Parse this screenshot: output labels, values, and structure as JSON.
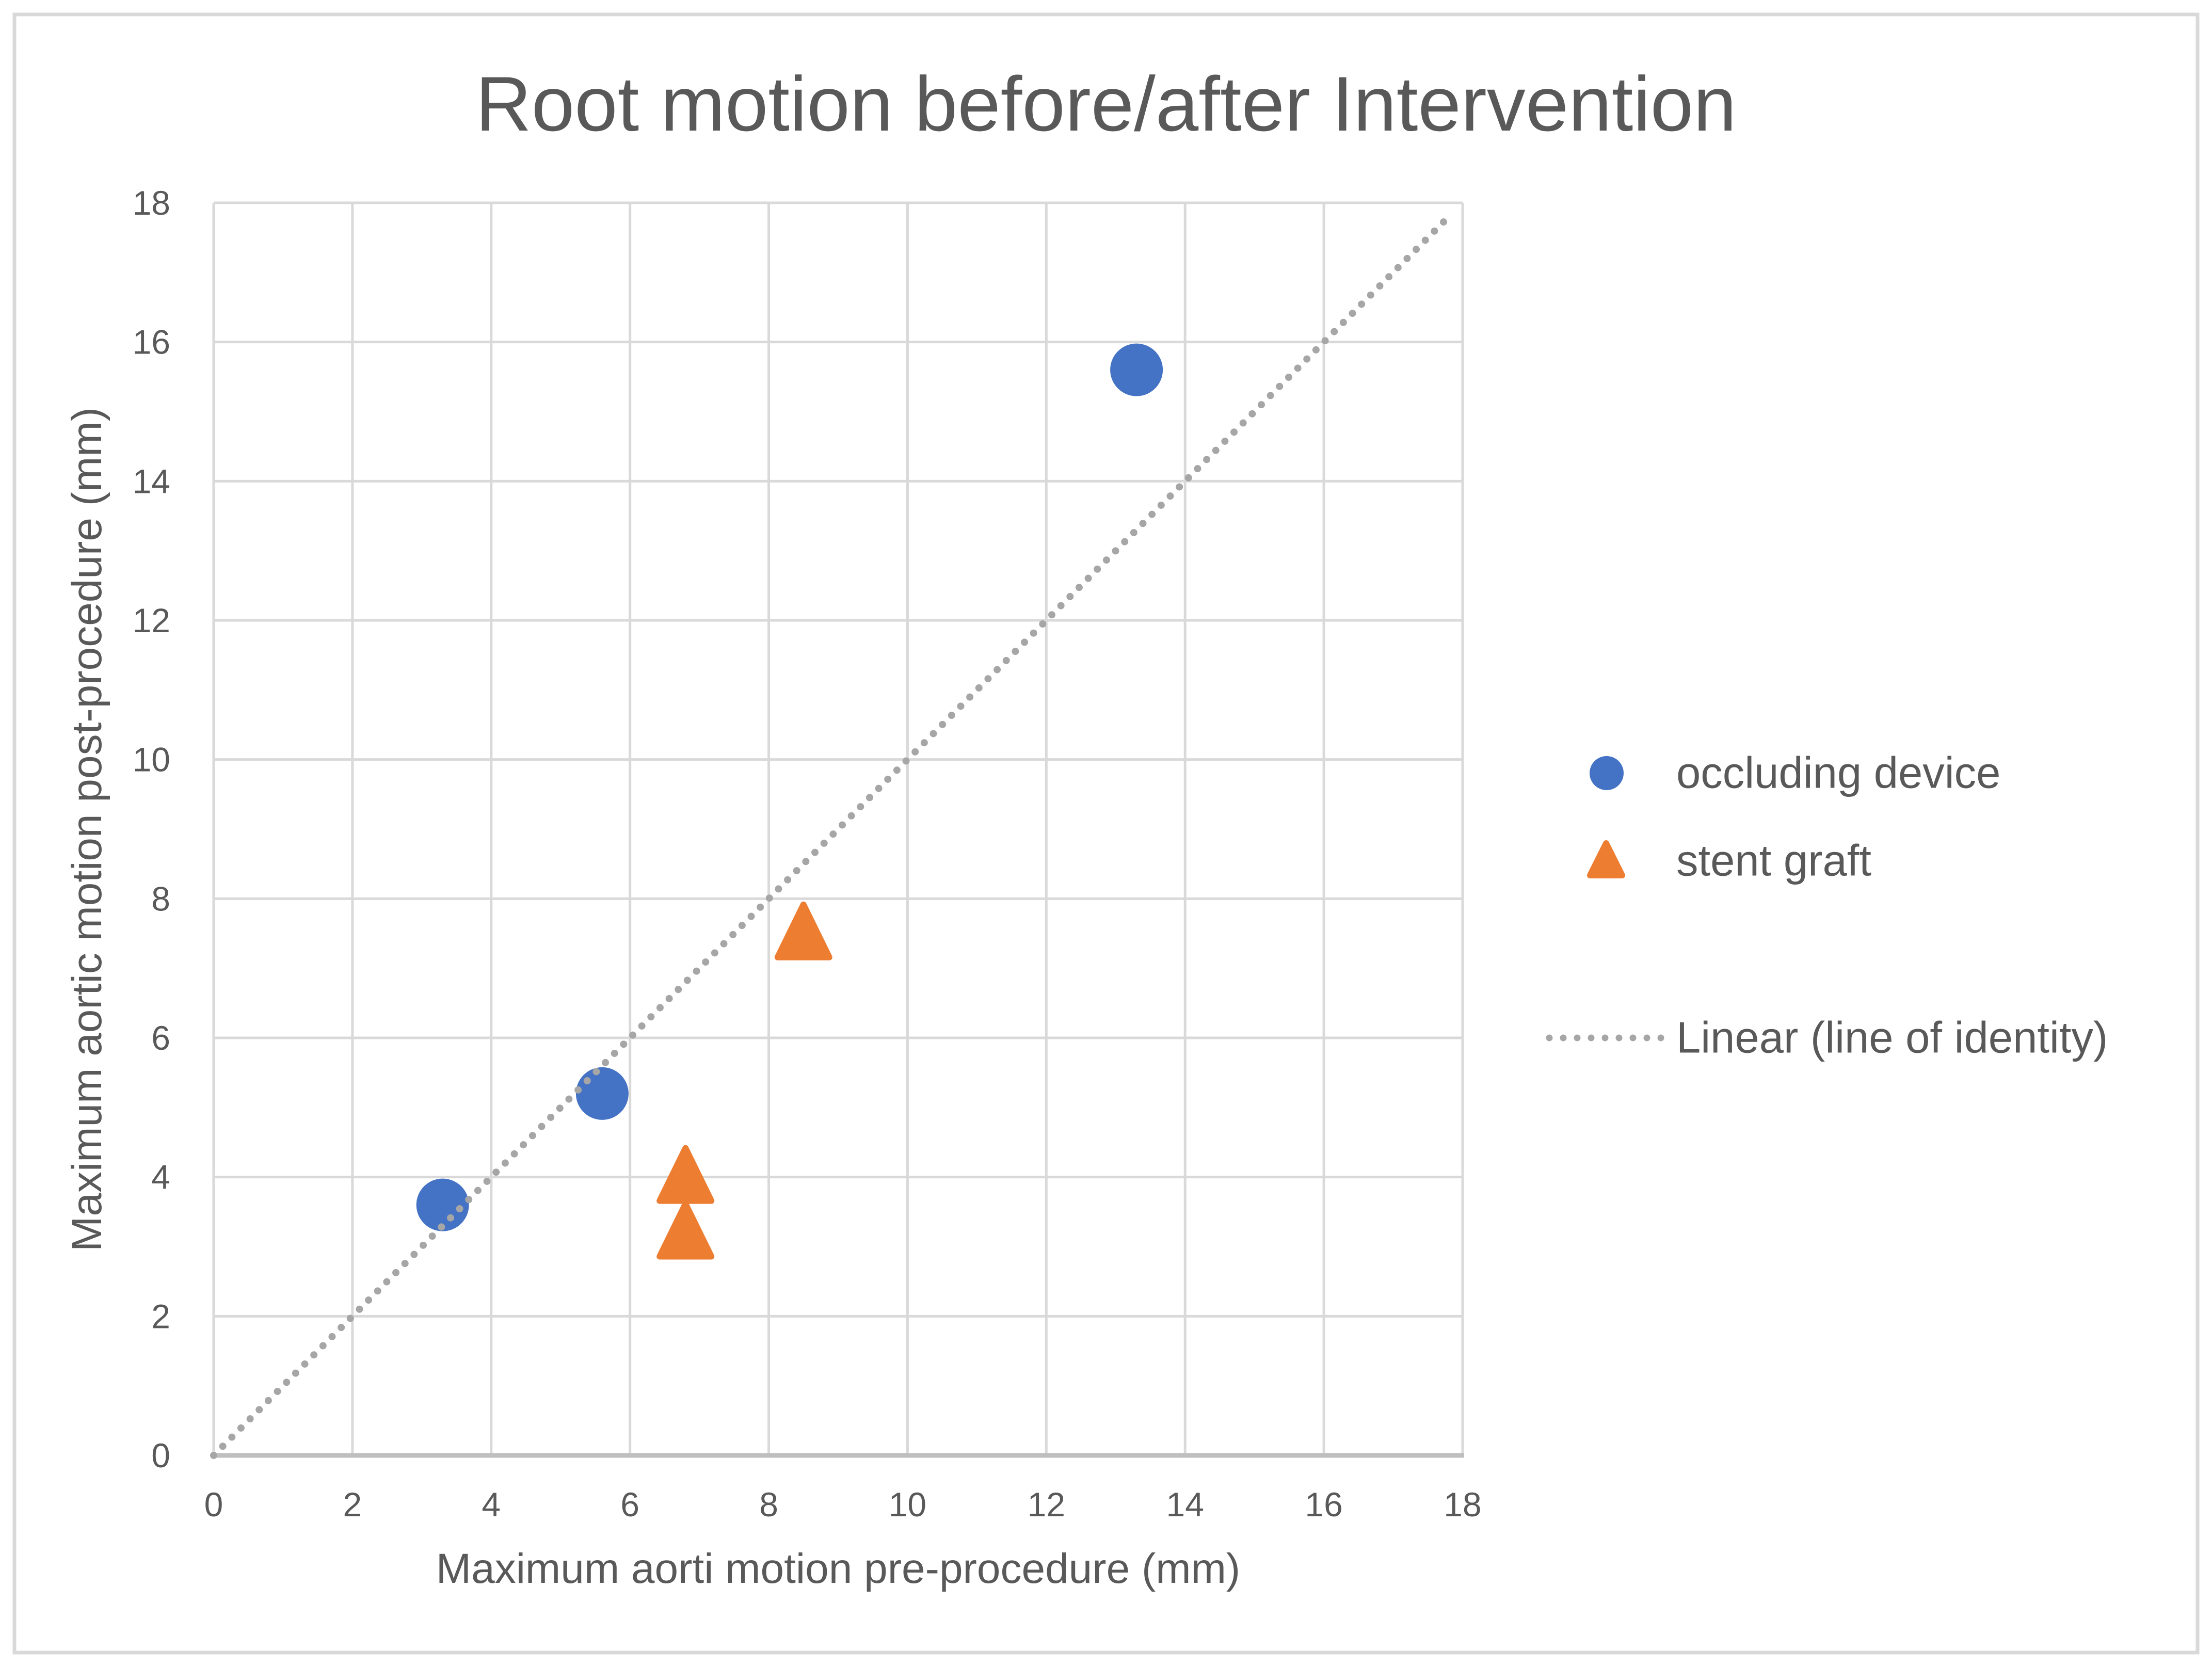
{
  "chart_data": {
    "type": "scatter",
    "title": "Root motion before/after Intervention",
    "xlabel": "Maximum aorti motion pre-procedure (mm)",
    "ylabel": "Maximum aortic motion post-procedure (mm)",
    "xlim": [
      0,
      18
    ],
    "ylim": [
      0,
      18
    ],
    "xticks": [
      0,
      2,
      4,
      6,
      8,
      10,
      12,
      14,
      16,
      18
    ],
    "yticks": [
      0,
      2,
      4,
      6,
      8,
      10,
      12,
      14,
      16,
      18
    ],
    "grid": true,
    "legend_position": "right",
    "series": [
      {
        "name": "occluding device",
        "marker": "circle",
        "color": "#4472C4",
        "points": [
          [
            3.3,
            3.6
          ],
          [
            5.6,
            5.2
          ],
          [
            13.3,
            15.6
          ]
        ]
      },
      {
        "name": "stent graft",
        "marker": "triangle",
        "color": "#ED7D31",
        "points": [
          [
            6.8,
            4.0
          ],
          [
            6.8,
            3.2
          ],
          [
            8.5,
            7.5
          ]
        ]
      }
    ],
    "trendline": {
      "name": "Linear (line of identity)",
      "style": "dotted",
      "color": "#A6A6A6",
      "from": [
        0,
        0
      ],
      "to": [
        17.85,
        17.85
      ]
    }
  },
  "colors": {
    "text": "#595959",
    "grid": "#D9D9D9",
    "axis_line": "#BFBFBF",
    "border": "#D9D9D9",
    "background": "#FFFFFF"
  }
}
